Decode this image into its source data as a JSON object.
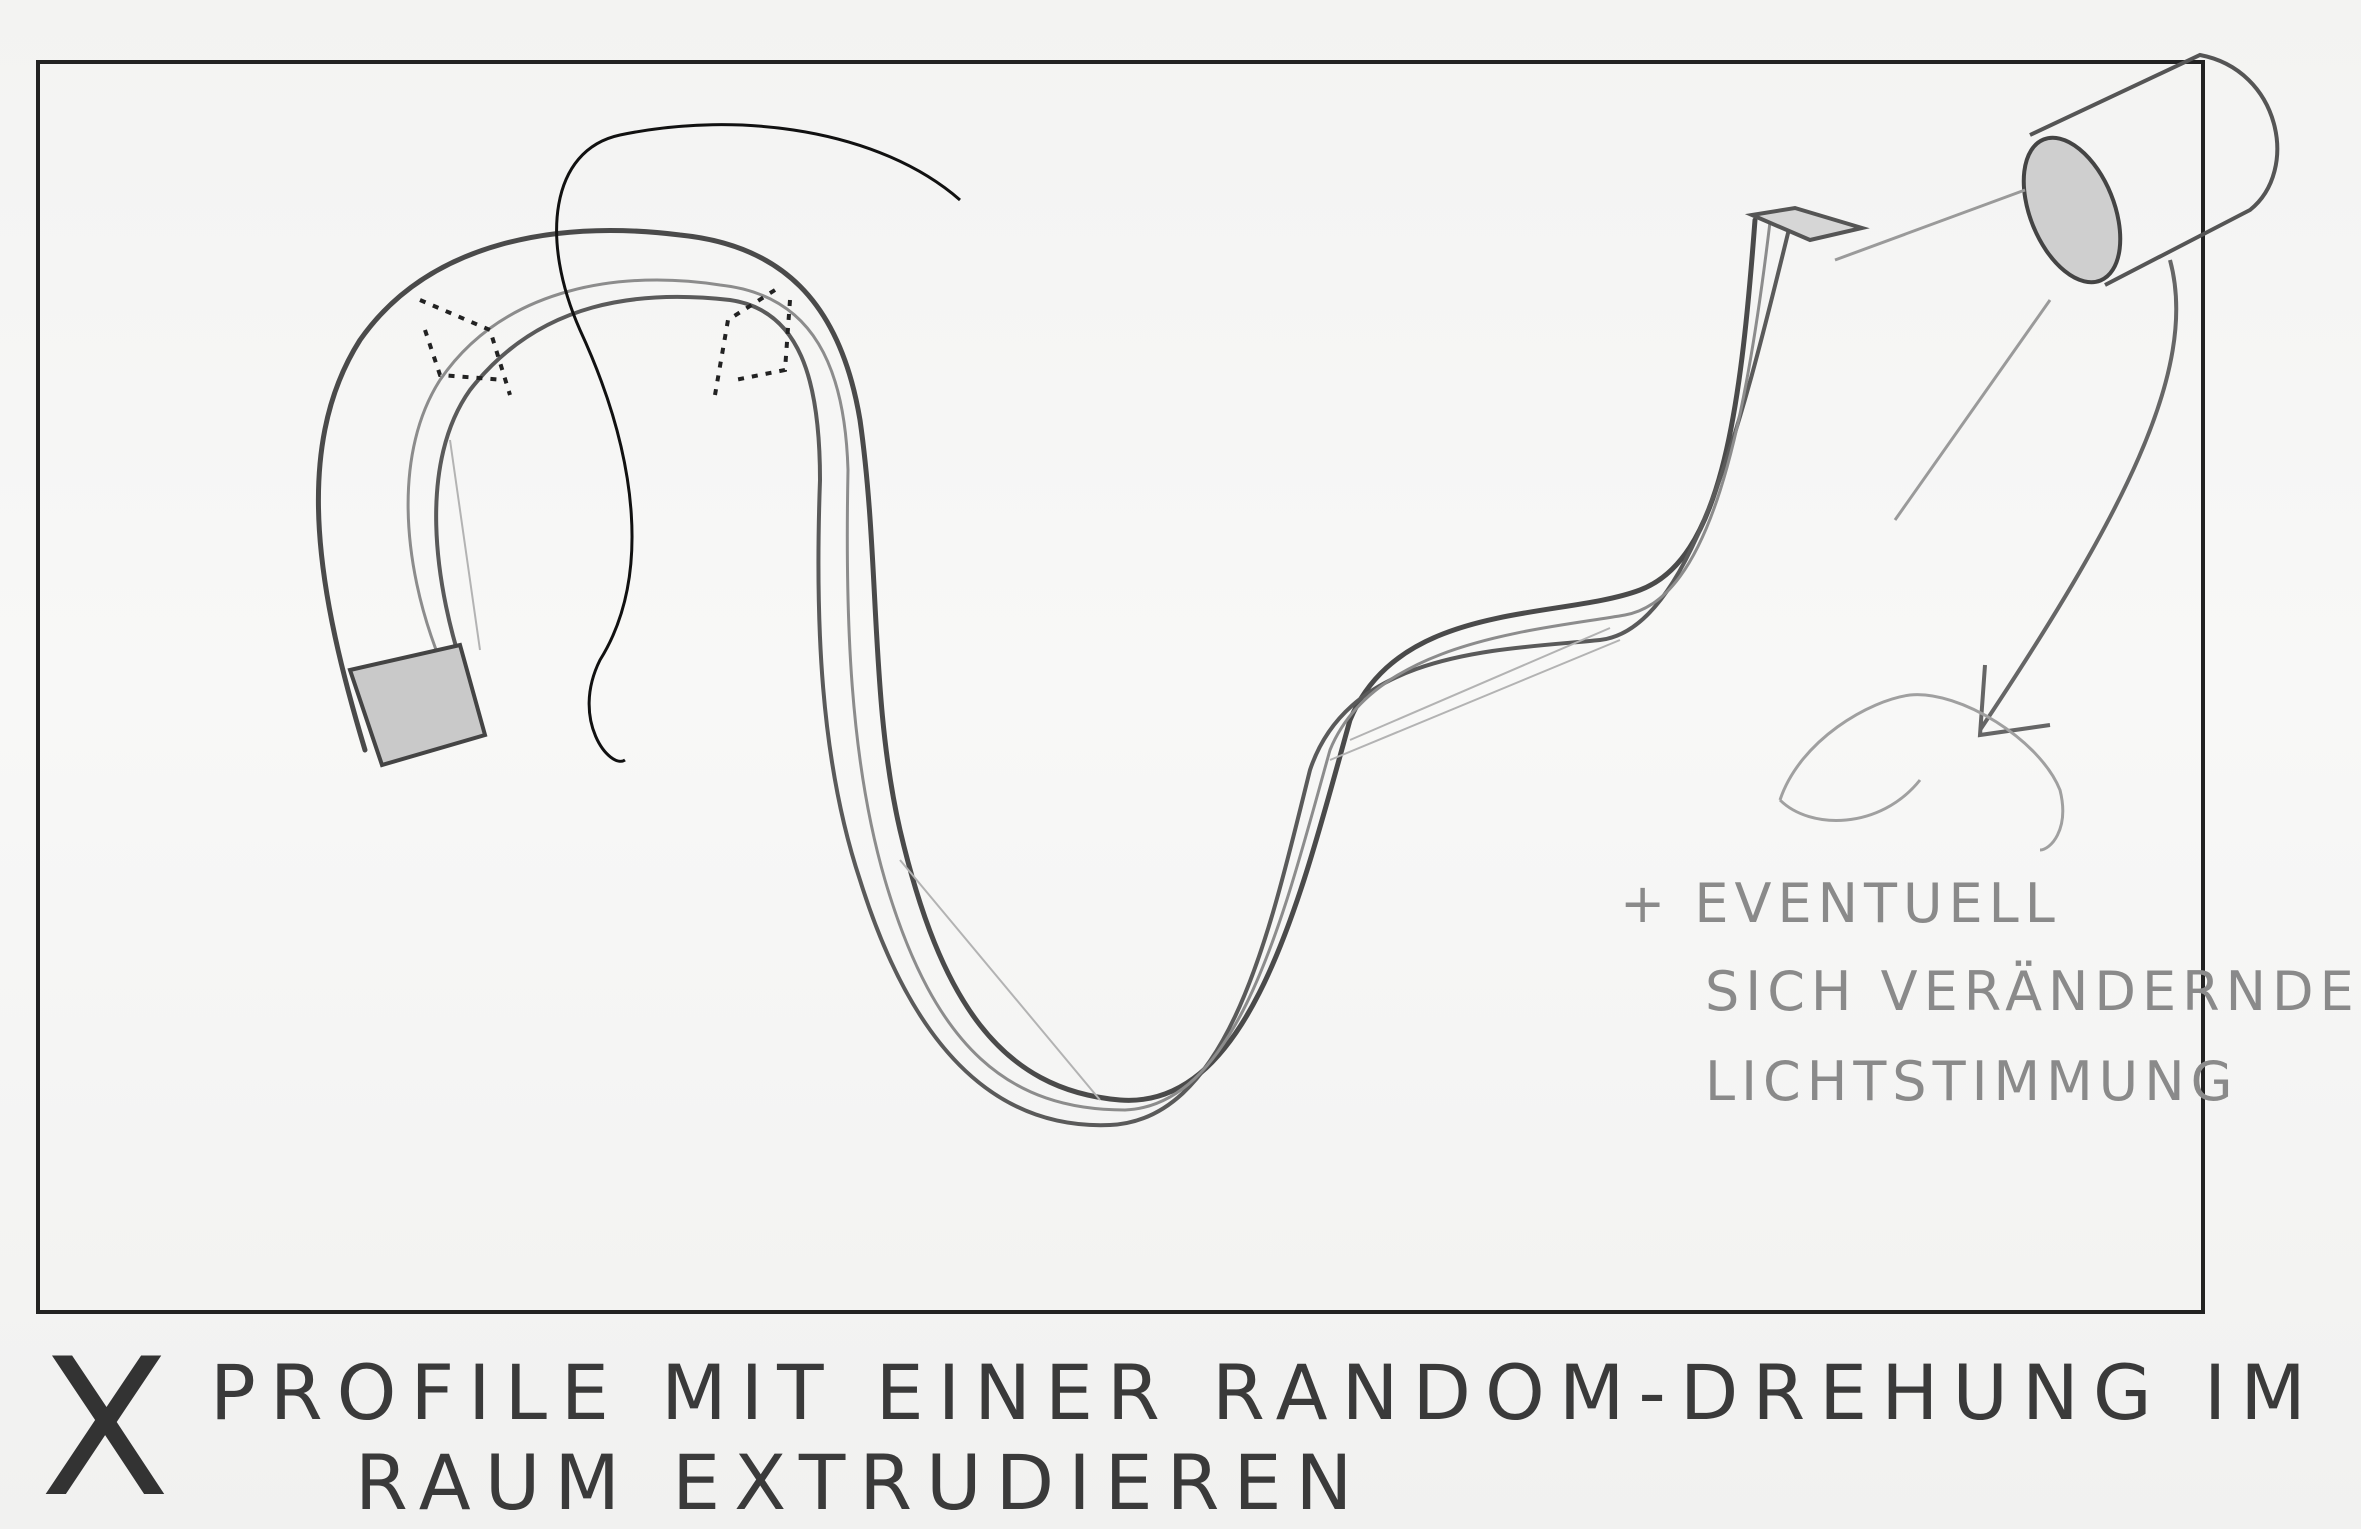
{
  "notes": {
    "line1": "+ EVENTUELL",
    "line2": "SICH VERÄNDERNDE",
    "line3": "LICHTSTIMMUNG"
  },
  "caption": {
    "mark": "X",
    "line1": "PROFILE MIT EINER RANDOM-DREHUNG IM",
    "line2": "RAUM EXTRUDIEREN"
  }
}
